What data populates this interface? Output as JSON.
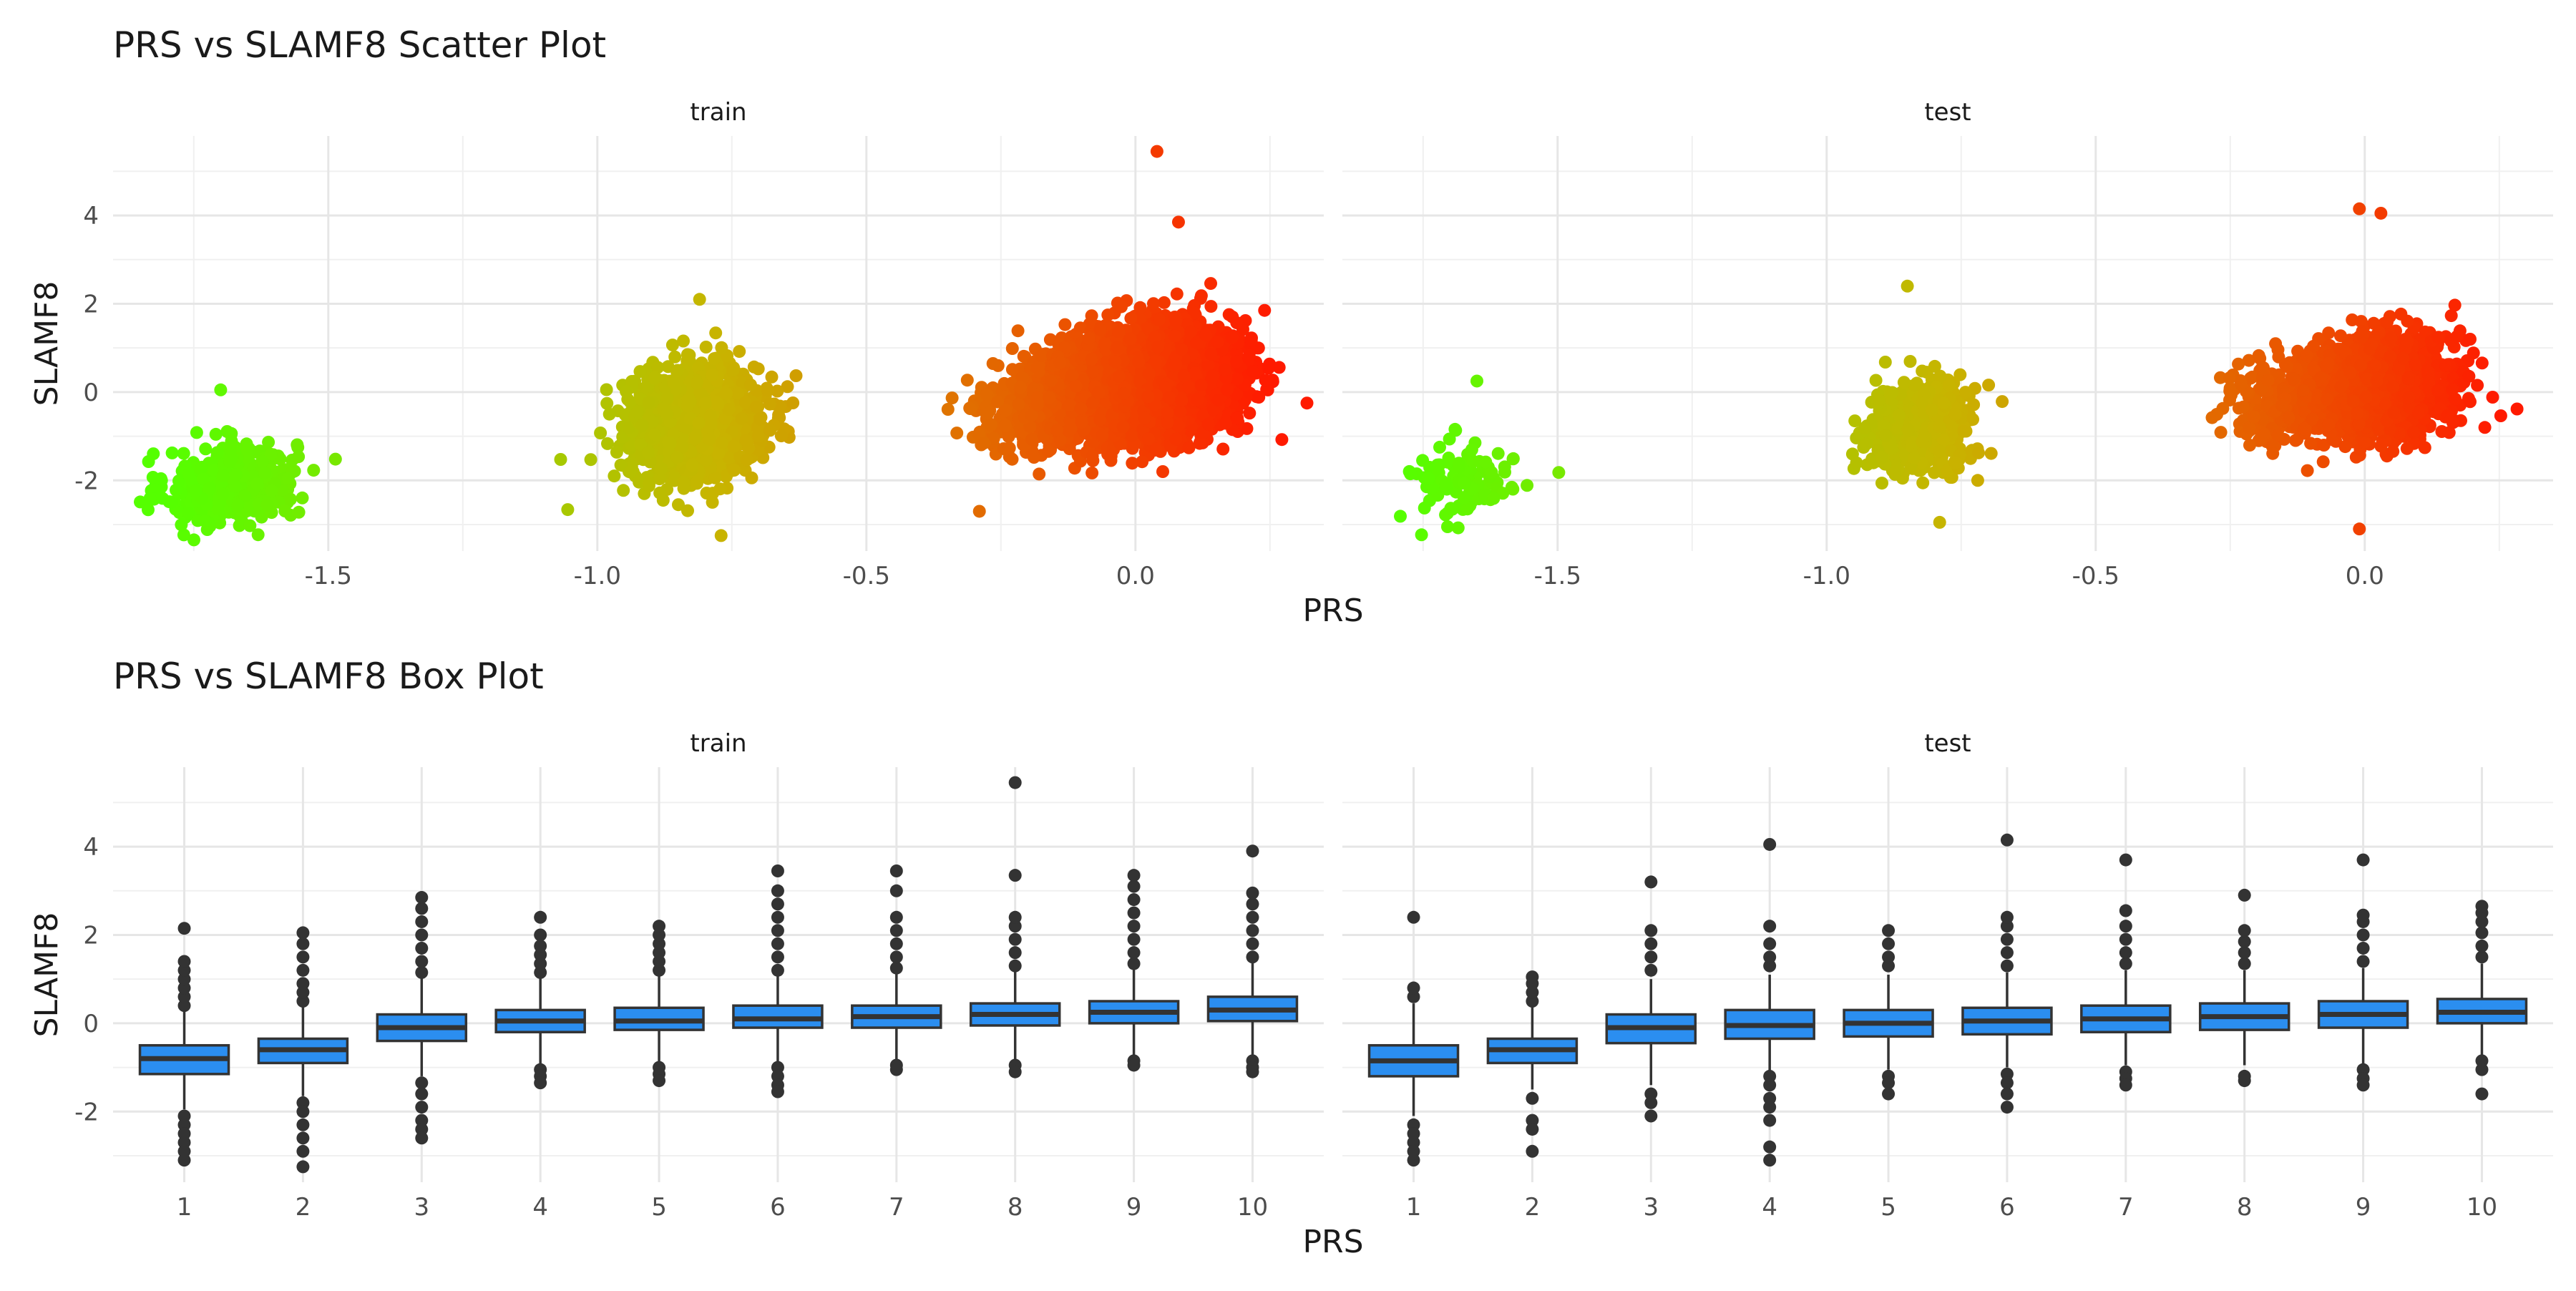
{
  "chart_data": [
    {
      "type": "scatter",
      "title": "PRS vs SLAMF8 Scatter Plot",
      "xlabel": "PRS",
      "ylabel": "SLAMF8",
      "panels": [
        "train",
        "test"
      ],
      "xlim": [
        -1.9,
        0.35
      ],
      "ylim": [
        -3.6,
        5.8
      ],
      "x_ticks": [
        -1.5,
        -1.0,
        -0.5,
        0.0
      ],
      "x_tick_labels": [
        "-1.5",
        "-1.0",
        "-0.5",
        "0.0"
      ],
      "y_ticks": [
        -2,
        0,
        2,
        4
      ],
      "y_tick_labels": [
        "-2",
        "0",
        "2",
        "4"
      ],
      "color_scale": {
        "low": "#55ff00",
        "mid": "#c8b400",
        "high": "#ff1a00",
        "note": "color encodes PRS value"
      },
      "grid": true,
      "clusters": {
        "train": [
          {
            "x_center": -1.68,
            "y_center": -2.1,
            "x_spread": 0.06,
            "y_spread": 0.45,
            "n": 450
          },
          {
            "x_center": -0.82,
            "y_center": -0.7,
            "x_spread": 0.06,
            "y_spread": 0.6,
            "n": 1400
          },
          {
            "x_center": -0.15,
            "y_center": -0.2,
            "x_spread": 0.06,
            "y_spread": 0.5,
            "n": 900
          },
          {
            "x_center": 0.02,
            "y_center": 0.2,
            "x_spread": 0.08,
            "y_spread": 0.6,
            "n": 3600
          }
        ],
        "test": [
          {
            "x_center": -1.68,
            "y_center": -2.05,
            "x_spread": 0.05,
            "y_spread": 0.4,
            "n": 110
          },
          {
            "x_center": -0.83,
            "y_center": -0.75,
            "x_spread": 0.05,
            "y_spread": 0.5,
            "n": 500
          },
          {
            "x_center": -0.15,
            "y_center": -0.2,
            "x_spread": 0.05,
            "y_spread": 0.45,
            "n": 300
          },
          {
            "x_center": 0.02,
            "y_center": 0.15,
            "x_spread": 0.07,
            "y_spread": 0.55,
            "n": 1500
          }
        ]
      },
      "highlight_points": {
        "train": [
          [
            0.04,
            5.45
          ],
          [
            0.08,
            3.85
          ],
          [
            0.24,
            1.85
          ],
          [
            -0.81,
            2.1
          ],
          [
            -0.77,
            -3.25
          ],
          [
            -1.7,
            0.05
          ],
          [
            -0.29,
            -2.7
          ]
        ],
        "test": [
          [
            -0.01,
            4.15
          ],
          [
            0.03,
            4.05
          ],
          [
            -0.85,
            2.4
          ],
          [
            -1.65,
            0.25
          ],
          [
            -0.01,
            -3.1
          ],
          [
            -0.79,
            -2.95
          ]
        ]
      }
    },
    {
      "type": "box",
      "title": "PRS vs SLAMF8 Box Plot",
      "xlabel": "PRS",
      "ylabel": "SLAMF8",
      "panels": [
        "train",
        "test"
      ],
      "categories": [
        "1",
        "2",
        "3",
        "4",
        "5",
        "6",
        "7",
        "8",
        "9",
        "10"
      ],
      "ylim": [
        -3.6,
        5.8
      ],
      "y_ticks": [
        -2,
        0,
        2,
        4
      ],
      "y_tick_labels": [
        "-2",
        "0",
        "2",
        "4"
      ],
      "box_color": "#2b8ef0",
      "grid": true,
      "series": [
        {
          "name": "train",
          "boxes": [
            {
              "q1": -1.15,
              "median": -0.8,
              "q3": -0.5,
              "whisker_low": -1.95,
              "whisker_high": 0.3,
              "outliers": [
                -2.1,
                -2.3,
                -2.5,
                -2.7,
                -2.9,
                -3.1,
                0.4,
                0.6,
                0.8,
                1.0,
                1.2,
                1.4,
                2.15
              ]
            },
            {
              "q1": -0.9,
              "median": -0.6,
              "q3": -0.35,
              "whisker_low": -1.65,
              "whisker_high": 0.4,
              "outliers": [
                -1.8,
                -2.0,
                -2.3,
                -2.6,
                -2.9,
                -3.25,
                0.5,
                0.7,
                0.9,
                1.2,
                1.5,
                1.8,
                2.05
              ]
            },
            {
              "q1": -0.4,
              "median": -0.1,
              "q3": 0.2,
              "whisker_low": -1.2,
              "whisker_high": 1.05,
              "outliers": [
                -1.35,
                -1.6,
                -1.9,
                -2.2,
                -2.4,
                -2.6,
                1.15,
                1.4,
                1.7,
                2.0,
                2.3,
                2.6,
                2.85
              ]
            },
            {
              "q1": -0.2,
              "median": 0.05,
              "q3": 0.3,
              "whisker_low": -0.95,
              "whisker_high": 1.05,
              "outliers": [
                -1.05,
                -1.2,
                -1.35,
                1.15,
                1.35,
                1.55,
                1.75,
                2.0,
                2.4
              ]
            },
            {
              "q1": -0.15,
              "median": 0.05,
              "q3": 0.35,
              "whisker_low": -0.9,
              "whisker_high": 1.1,
              "outliers": [
                -1.0,
                -1.15,
                -1.3,
                1.2,
                1.4,
                1.6,
                1.8,
                2.0,
                2.2
              ]
            },
            {
              "q1": -0.1,
              "median": 0.1,
              "q3": 0.4,
              "whisker_low": -0.9,
              "whisker_high": 1.1,
              "outliers": [
                -1.0,
                -1.2,
                -1.4,
                -1.55,
                1.2,
                1.5,
                1.8,
                2.1,
                2.4,
                2.7,
                3.0,
                3.45
              ]
            },
            {
              "q1": -0.1,
              "median": 0.15,
              "q3": 0.4,
              "whisker_low": -0.85,
              "whisker_high": 1.15,
              "outliers": [
                -0.95,
                -1.05,
                1.25,
                1.5,
                1.8,
                2.1,
                2.4,
                3.0,
                3.45
              ]
            },
            {
              "q1": -0.05,
              "median": 0.2,
              "q3": 0.45,
              "whisker_low": -0.85,
              "whisker_high": 1.2,
              "outliers": [
                -0.95,
                -1.1,
                1.3,
                1.6,
                1.9,
                2.2,
                2.4,
                3.35,
                5.45
              ]
            },
            {
              "q1": 0.0,
              "median": 0.25,
              "q3": 0.5,
              "whisker_low": -0.75,
              "whisker_high": 1.25,
              "outliers": [
                -0.85,
                -0.95,
                1.35,
                1.6,
                1.9,
                2.2,
                2.5,
                2.8,
                3.1,
                3.35
              ]
            },
            {
              "q1": 0.05,
              "median": 0.3,
              "q3": 0.6,
              "whisker_low": -0.75,
              "whisker_high": 1.4,
              "outliers": [
                -0.85,
                -1.0,
                -1.1,
                1.5,
                1.8,
                2.1,
                2.4,
                2.7,
                2.95,
                3.9
              ]
            }
          ]
        },
        {
          "name": "test",
          "boxes": [
            {
              "q1": -1.2,
              "median": -0.85,
              "q3": -0.5,
              "whisker_low": -2.1,
              "whisker_high": 0.45,
              "outliers": [
                -2.3,
                -2.5,
                -2.7,
                -2.9,
                -3.1,
                0.6,
                0.8,
                2.4
              ]
            },
            {
              "q1": -0.9,
              "median": -0.6,
              "q3": -0.35,
              "whisker_low": -1.5,
              "whisker_high": 0.4,
              "outliers": [
                -1.7,
                -2.2,
                -2.4,
                -2.9,
                0.5,
                0.7,
                0.9,
                1.05
              ]
            },
            {
              "q1": -0.45,
              "median": -0.1,
              "q3": 0.2,
              "whisker_low": -1.4,
              "whisker_high": 1.0,
              "outliers": [
                -1.6,
                -1.8,
                -2.1,
                1.2,
                1.5,
                1.8,
                2.1,
                3.2
              ]
            },
            {
              "q1": -0.35,
              "median": -0.05,
              "q3": 0.3,
              "whisker_low": -1.1,
              "whisker_high": 1.1,
              "outliers": [
                -1.2,
                -1.4,
                -1.7,
                -1.9,
                -2.2,
                -2.8,
                -3.1,
                1.3,
                1.5,
                1.8,
                2.2,
                4.05
              ]
            },
            {
              "q1": -0.3,
              "median": 0.0,
              "q3": 0.3,
              "whisker_low": -1.05,
              "whisker_high": 1.1,
              "outliers": [
                -1.2,
                -1.35,
                -1.6,
                1.3,
                1.5,
                1.8,
                2.1
              ]
            },
            {
              "q1": -0.25,
              "median": 0.05,
              "q3": 0.35,
              "whisker_low": -1.0,
              "whisker_high": 1.15,
              "outliers": [
                -1.15,
                -1.35,
                -1.6,
                -1.9,
                1.3,
                1.6,
                1.9,
                2.2,
                2.4,
                4.15
              ]
            },
            {
              "q1": -0.2,
              "median": 0.1,
              "q3": 0.4,
              "whisker_low": -0.95,
              "whisker_high": 1.2,
              "outliers": [
                -1.1,
                -1.25,
                -1.4,
                1.35,
                1.6,
                1.9,
                2.2,
                2.55,
                3.7
              ]
            },
            {
              "q1": -0.15,
              "median": 0.15,
              "q3": 0.45,
              "whisker_low": -0.95,
              "whisker_high": 1.2,
              "outliers": [
                -1.2,
                -1.3,
                1.35,
                1.6,
                1.85,
                2.1,
                2.9
              ]
            },
            {
              "q1": -0.1,
              "median": 0.2,
              "q3": 0.5,
              "whisker_low": -0.95,
              "whisker_high": 1.25,
              "outliers": [
                -1.05,
                -1.25,
                -1.4,
                1.4,
                1.7,
                2.0,
                2.3,
                2.45,
                3.7
              ]
            },
            {
              "q1": 0.0,
              "median": 0.25,
              "q3": 0.55,
              "whisker_low": -0.75,
              "whisker_high": 1.35,
              "outliers": [
                -0.85,
                -1.05,
                -1.6,
                1.5,
                1.75,
                2.05,
                2.3,
                2.5,
                2.65
              ]
            }
          ]
        }
      ]
    }
  ]
}
